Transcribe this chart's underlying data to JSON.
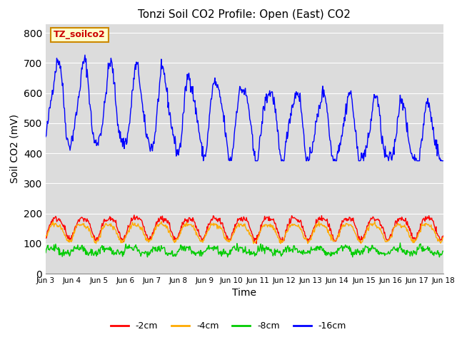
{
  "title": "Tonzi Soil CO2 Profile: Open (East) CO2",
  "ylabel": "Soil CO2 (mV)",
  "xlabel": "Time",
  "ylim": [
    0,
    830
  ],
  "yticks": [
    0,
    100,
    200,
    300,
    400,
    500,
    600,
    700,
    800
  ],
  "bg_color": "#dcdcdc",
  "fig_color": "#ffffff",
  "label_box_text": "TZ_soilco2",
  "label_box_facecolor": "#ffffcc",
  "label_box_edgecolor": "#cc8800",
  "legend_labels": [
    "-2cm",
    "-4cm",
    "-8cm",
    "-16cm"
  ],
  "legend_colors": [
    "#ff0000",
    "#ffaa00",
    "#00cc00",
    "#0000ff"
  ],
  "n_days": 15,
  "tick_labels": [
    "Jun 3",
    "Jun 4",
    "Jun 5",
    "Jun 6",
    "Jun 7",
    "Jun 8",
    "Jun 9",
    "Jun 10",
    "Jun 11",
    "Jun 12",
    "Jun 13",
    "Jun 14",
    "Jun 15",
    "Jun 16",
    "Jun 17",
    "Jun 18"
  ],
  "color_16cm": "#0000ff",
  "color_2cm": "#ff0000",
  "color_4cm": "#ffaa00",
  "color_8cm": "#00cc00"
}
